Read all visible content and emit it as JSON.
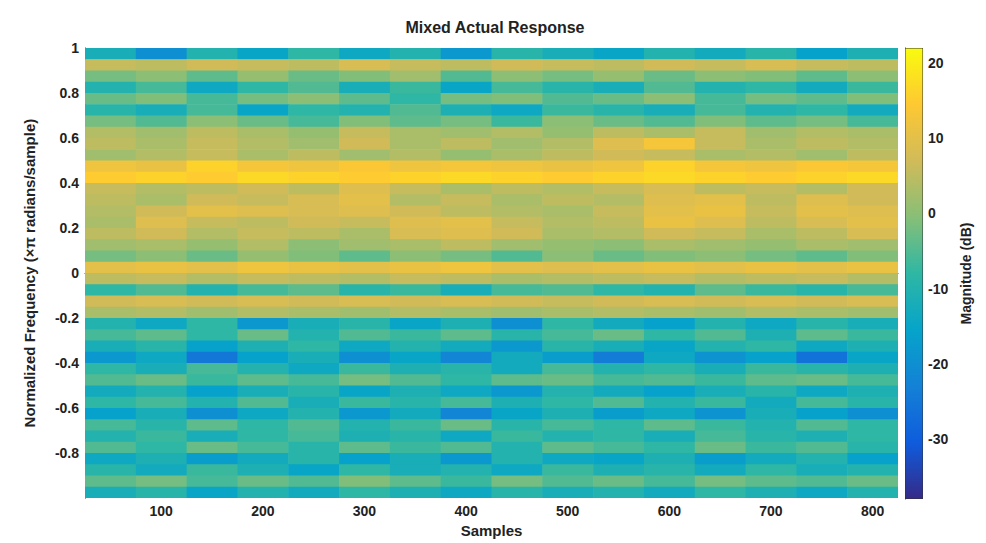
{
  "chart_data": {
    "type": "heatmap",
    "title": "Mixed Actual Response",
    "x_label": "Samples",
    "y_label": "Normalized Frequency (×π radians/sample)",
    "xlim": [
      25,
      825
    ],
    "xticks": [
      100,
      200,
      300,
      400,
      500,
      600,
      700,
      800
    ],
    "ylim": [
      -1,
      1
    ],
    "yticks": [
      -0.8,
      -0.6,
      -0.4,
      -0.2,
      0,
      0.2,
      0.4,
      0.6,
      0.8,
      1
    ],
    "x": [
      50,
      100,
      150,
      200,
      250,
      300,
      350,
      400,
      450,
      500,
      550,
      600,
      650,
      700,
      750,
      800
    ],
    "y": [
      0.975,
      0.925,
      0.875,
      0.825,
      0.775,
      0.725,
      0.675,
      0.625,
      0.575,
      0.525,
      0.475,
      0.425,
      0.375,
      0.325,
      0.275,
      0.225,
      0.175,
      0.125,
      0.075,
      0.025,
      -0.025,
      -0.075,
      -0.125,
      -0.175,
      -0.225,
      -0.275,
      -0.325,
      -0.375,
      -0.425,
      -0.475,
      -0.525,
      -0.575,
      -0.625,
      -0.675,
      -0.725,
      -0.775,
      -0.825,
      -0.875,
      -0.925,
      -0.975
    ],
    "cells": [
      [
        -12,
        -20,
        -10,
        -15,
        -8,
        -14,
        -10,
        -18,
        -9,
        -12,
        -15,
        -10,
        -13,
        -9,
        -16,
        -11
      ],
      [
        6,
        5,
        7,
        6,
        5,
        8,
        6,
        5,
        7,
        6,
        5,
        7,
        6,
        8,
        6,
        5
      ],
      [
        -2,
        0,
        -4,
        1,
        -3,
        -1,
        2,
        -5,
        0,
        -2,
        1,
        -3,
        0,
        -1,
        -4,
        0
      ],
      [
        -10,
        -6,
        -14,
        -8,
        -5,
        -12,
        -7,
        -15,
        -6,
        -9,
        -12,
        -5,
        -10,
        -8,
        -13,
        -7
      ],
      [
        -3,
        -1,
        -6,
        -2,
        0,
        -4,
        -8,
        -2,
        -1,
        -5,
        -3,
        0,
        -6,
        -2,
        -4,
        -1
      ],
      [
        -9,
        -12,
        -6,
        -15,
        -8,
        -10,
        -5,
        -11,
        -14,
        -7,
        -9,
        -12,
        -6,
        -10,
        -8,
        -13
      ],
      [
        -2,
        -5,
        0,
        -3,
        -6,
        -1,
        -4,
        -2,
        -7,
        0,
        -3,
        -5,
        -1,
        -4,
        -2,
        -6
      ],
      [
        4,
        2,
        5,
        3,
        1,
        6,
        3,
        2,
        4,
        1,
        5,
        3,
        6,
        2,
        4,
        3
      ],
      [
        5,
        3,
        6,
        4,
        2,
        7,
        3,
        5,
        2,
        4,
        9,
        13,
        6,
        3,
        5,
        4
      ],
      [
        2,
        4,
        6,
        3,
        5,
        2,
        4,
        1,
        3,
        5,
        7,
        6,
        3,
        4,
        2,
        5
      ],
      [
        12,
        11,
        16,
        13,
        12,
        14,
        12,
        13,
        12,
        11,
        12,
        16,
        13,
        12,
        14,
        13
      ],
      [
        15,
        16,
        15,
        17,
        16,
        15,
        16,
        17,
        16,
        15,
        16,
        17,
        16,
        15,
        16,
        17
      ],
      [
        6,
        4,
        5,
        7,
        5,
        9,
        6,
        3,
        5,
        4,
        6,
        8,
        5,
        6,
        4,
        7
      ],
      [
        5,
        3,
        7,
        6,
        8,
        10,
        4,
        6,
        3,
        5,
        4,
        9,
        10,
        5,
        9,
        7
      ],
      [
        4,
        7,
        10,
        9,
        8,
        9,
        7,
        5,
        4,
        3,
        6,
        10,
        11,
        6,
        10,
        9
      ],
      [
        3,
        9,
        6,
        5,
        7,
        6,
        9,
        10,
        6,
        4,
        5,
        11,
        9,
        5,
        8,
        10
      ],
      [
        5,
        7,
        4,
        6,
        5,
        3,
        8,
        9,
        7,
        3,
        4,
        7,
        6,
        3,
        5,
        8
      ],
      [
        2,
        3,
        1,
        4,
        0,
        2,
        3,
        5,
        2,
        1,
        0,
        3,
        2,
        1,
        3,
        2
      ],
      [
        -2,
        0,
        -3,
        1,
        -1,
        -4,
        0,
        -2,
        -5,
        0,
        -3,
        -1,
        0,
        -2,
        -4,
        -1
      ],
      [
        10,
        11,
        10,
        12,
        11,
        10,
        11,
        12,
        10,
        9,
        10,
        11,
        10,
        11,
        10,
        11
      ],
      [
        5,
        6,
        4,
        6,
        5,
        4,
        6,
        5,
        3,
        4,
        5,
        6,
        4,
        5,
        6,
        4
      ],
      [
        -8,
        -5,
        -10,
        -6,
        -4,
        -9,
        -7,
        -12,
        -6,
        -5,
        -8,
        -10,
        -4,
        -7,
        -9,
        -6
      ],
      [
        7,
        8,
        7,
        8,
        7,
        8,
        7,
        8,
        7,
        6,
        7,
        8,
        7,
        8,
        7,
        8
      ],
      [
        3,
        4,
        2,
        4,
        3,
        2,
        4,
        3,
        2,
        3,
        4,
        3,
        2,
        4,
        3,
        2
      ],
      [
        -10,
        -14,
        -8,
        -18,
        -12,
        -9,
        -15,
        -11,
        -20,
        -8,
        -13,
        -16,
        -10,
        -14,
        -9,
        -12
      ],
      [
        -6,
        -4,
        -8,
        -3,
        -10,
        -5,
        -7,
        -4,
        -9,
        -6,
        -3,
        -8,
        -5,
        -11,
        -4,
        -7
      ],
      [
        -12,
        -9,
        -16,
        -11,
        -8,
        -14,
        -10,
        -13,
        -18,
        -9,
        -12,
        -15,
        -10,
        -8,
        -14,
        -11
      ],
      [
        -18,
        -14,
        -25,
        -16,
        -12,
        -20,
        -15,
        -22,
        -13,
        -17,
        -24,
        -14,
        -19,
        -16,
        -26,
        -15
      ],
      [
        -8,
        -12,
        -6,
        -10,
        -14,
        -7,
        -11,
        -9,
        -13,
        -6,
        -10,
        -8,
        -12,
        -7,
        -9,
        -11
      ],
      [
        -5,
        -3,
        -7,
        -4,
        -6,
        -2,
        -5,
        -8,
        -4,
        -3,
        -6,
        -5,
        -7,
        -4,
        -3,
        -6
      ],
      [
        -13,
        -10,
        -16,
        -12,
        -9,
        -15,
        -11,
        -14,
        -18,
        -10,
        -13,
        -16,
        -12,
        -9,
        -14,
        -11
      ],
      [
        -8,
        -6,
        -10,
        -5,
        -12,
        -7,
        -9,
        -6,
        -11,
        -8,
        -5,
        -10,
        -7,
        -13,
        -6,
        -9
      ],
      [
        -16,
        -12,
        -20,
        -14,
        -10,
        -18,
        -13,
        -22,
        -15,
        -11,
        -17,
        -14,
        -19,
        -12,
        -16,
        -20
      ],
      [
        -6,
        -9,
        -4,
        -8,
        -5,
        -10,
        -7,
        -3,
        -9,
        -6,
        -8,
        -4,
        -7,
        -10,
        -5,
        -8
      ],
      [
        -10,
        -7,
        -12,
        -8,
        -6,
        -11,
        -9,
        -14,
        -7,
        -10,
        -8,
        -12,
        -6,
        -9,
        -11,
        -8
      ],
      [
        -5,
        -8,
        -3,
        -6,
        -9,
        -4,
        -7,
        -5,
        -10,
        -4,
        -6,
        -8,
        -3,
        -7,
        -5,
        -9
      ],
      [
        -14,
        -11,
        -17,
        -13,
        -9,
        -16,
        -12,
        -18,
        -10,
        -14,
        -15,
        -11,
        -17,
        -13,
        -10,
        -16
      ],
      [
        -9,
        -13,
        -7,
        -11,
        -15,
        -8,
        -12,
        -10,
        -14,
        -7,
        -11,
        -9,
        -13,
        -8,
        -12,
        -10
      ],
      [
        -4,
        -2,
        -6,
        -3,
        -5,
        -1,
        -4,
        -7,
        -2,
        -5,
        -3,
        -6,
        -2,
        -4,
        -5,
        -3
      ],
      [
        -12,
        -9,
        -15,
        -10,
        -13,
        -8,
        -11,
        -14,
        -9,
        -12,
        -10,
        -13,
        -8,
        -11,
        -14,
        -10
      ]
    ],
    "colorbar": {
      "label": "Magnitude (dB)",
      "lim": [
        -38,
        22
      ],
      "ticks": [
        -30,
        -20,
        -10,
        0,
        10,
        20
      ]
    }
  }
}
